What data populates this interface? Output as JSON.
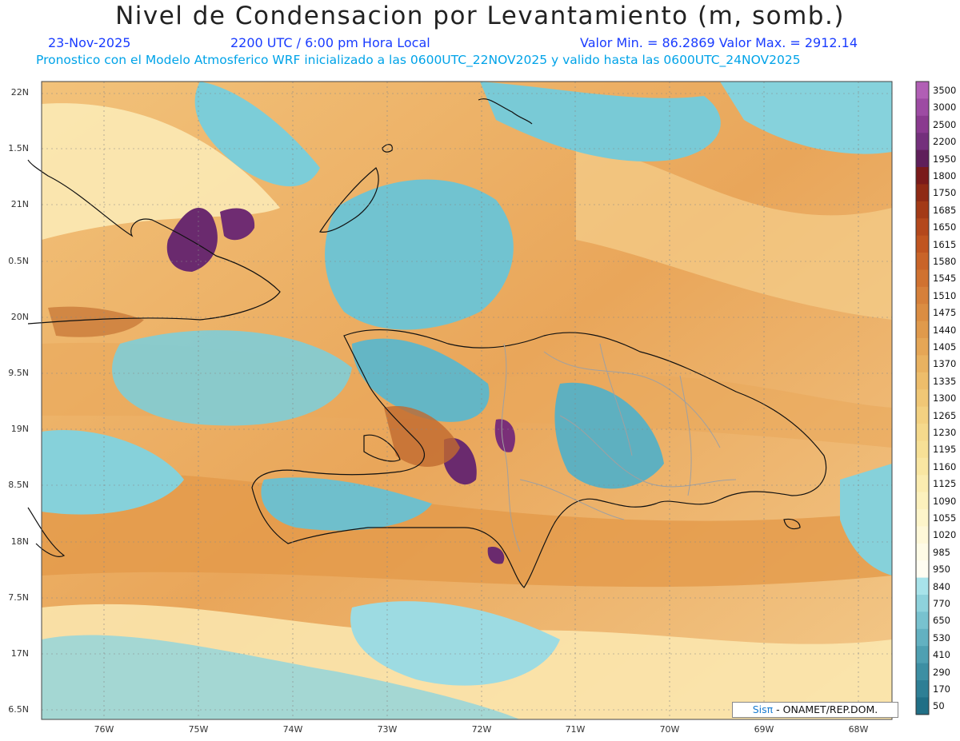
{
  "header": {
    "title": "Nivel de Condensacion por Levantamiento (m, somb.)",
    "date": "23-Nov-2025",
    "time": "2200 UTC / 6:00 pm Hora Local",
    "minmax": "Valor Min. = 86.2869  Valor Max. = 2912.14",
    "forecast": "Pronostico con el Modelo Atmosferico WRF inicializado a las 0600UTC_22NOV2025 y valido hasta las  0600UTC_24NOV2025"
  },
  "axes": {
    "lat_labels": [
      "22N",
      "1.5N",
      "21N",
      "0.5N",
      "20N",
      "9.5N",
      "19N",
      "8.5N",
      "18N",
      "7.5N",
      "17N",
      "6.5N"
    ],
    "lon_labels": [
      "76W",
      "75W",
      "74W",
      "73W",
      "72W",
      "71W",
      "70W",
      "69W",
      "68W"
    ]
  },
  "colorbar": {
    "labels": [
      "3500",
      "3000",
      "2500",
      "2200",
      "1950",
      "1800",
      "1750",
      "1685",
      "1650",
      "1615",
      "1580",
      "1545",
      "1510",
      "1475",
      "1440",
      "1405",
      "1370",
      "1335",
      "1300",
      "1265",
      "1230",
      "1195",
      "1160",
      "1125",
      "1090",
      "1055",
      "1020",
      "985",
      "950",
      "840",
      "770",
      "650",
      "530",
      "410",
      "290",
      "170",
      "50"
    ],
    "colors": [
      "#b15fb5",
      "#9d4ba3",
      "#8a3a8f",
      "#74307c",
      "#5f1f5a",
      "#7a1a1a",
      "#8f2a14",
      "#a33a16",
      "#b4481c",
      "#c05520",
      "#c96428",
      "#d07230",
      "#d6803a",
      "#db8d42",
      "#e09a4c",
      "#e5a656",
      "#e9b260",
      "#edbd6b",
      "#f0c776",
      "#f3d181",
      "#f5d98c",
      "#f7e096",
      "#f9e6a2",
      "#fbecb0",
      "#fcf1bd",
      "#fdf5ca",
      "#fef8d8",
      "#fefbe6",
      "#fffdf2",
      "#a8e3ea",
      "#8ed2dc",
      "#78c2cf",
      "#63b1c1",
      "#4fa0b2",
      "#3d8fa3",
      "#2e7f95",
      "#206f86"
    ],
    "accent_low": "#6cc6d6",
    "accent_high": "#e8a552"
  },
  "credit": {
    "brand": "Sisπ",
    "org": " - ONAMET/REP.DOM."
  }
}
